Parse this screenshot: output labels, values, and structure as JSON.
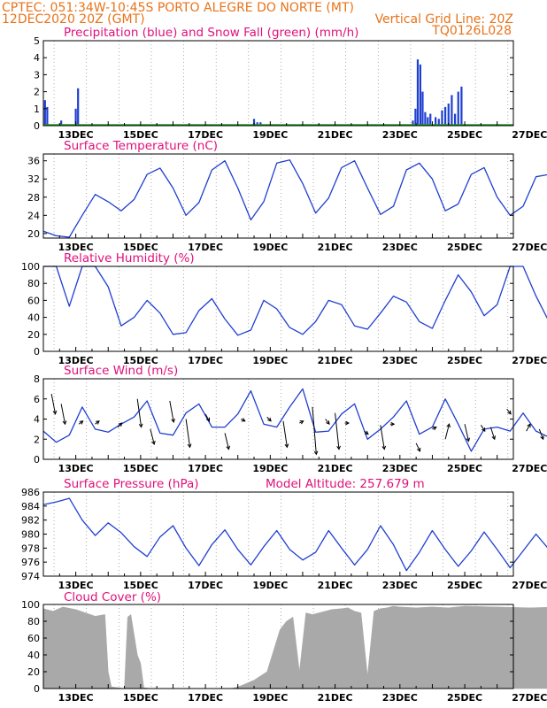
{
  "header": {
    "line1": "CPTEC:  051:34W-10:45S  PORTO ALEGRE DO NORTE (MT)",
    "line2_left": "12DEC2020 20Z (GMT)",
    "line2_right": "Vertical Grid Line: 20Z",
    "line3_right": "TQ0126L028"
  },
  "colors": {
    "header": "#e8731a",
    "panel_title": "#e0107a",
    "line": "#1f3fd0",
    "bar_blue": "#1f3fd0",
    "snow_green": "#1a9c1a",
    "cloud": "#a9a9a9"
  },
  "chart_data": [
    {
      "type": "bar",
      "title": "Precipitation (blue) and Snow Fall (green) (mm/h)",
      "ylim": [
        0,
        5
      ],
      "yticks": [
        0,
        1,
        2,
        3,
        4,
        5
      ],
      "xticklabels": [
        "13DEC",
        "15DEC",
        "17DEC",
        "19DEC",
        "21DEC",
        "23DEC",
        "25DEC",
        "27DEC"
      ],
      "series": [
        {
          "name": "Precipitation",
          "points": [
            [
              0.05,
              1.5
            ],
            [
              0.12,
              1.1
            ],
            [
              0.55,
              0.3
            ],
            [
              1.0,
              1.0
            ],
            [
              1.07,
              2.2
            ],
            [
              6.5,
              0.4
            ],
            [
              6.6,
              0.2
            ],
            [
              6.7,
              0.2
            ],
            [
              11.4,
              0.3
            ],
            [
              11.48,
              1.0
            ],
            [
              11.55,
              3.9
            ],
            [
              11.63,
              3.6
            ],
            [
              11.7,
              2.0
            ],
            [
              11.78,
              0.8
            ],
            [
              11.86,
              0.5
            ],
            [
              11.94,
              0.7
            ],
            [
              12.1,
              0.5
            ],
            [
              12.2,
              0.4
            ],
            [
              12.3,
              0.9
            ],
            [
              12.4,
              1.1
            ],
            [
              12.5,
              1.3
            ],
            [
              12.6,
              1.8
            ],
            [
              12.7,
              0.7
            ],
            [
              12.8,
              2.0
            ],
            [
              12.9,
              2.3
            ],
            [
              16.4,
              0.3
            ],
            [
              16.5,
              0.8
            ],
            [
              16.6,
              3.1
            ],
            [
              16.68,
              2.7
            ],
            [
              16.76,
              2.2
            ],
            [
              16.84,
              1.0
            ],
            [
              16.92,
              0.5
            ],
            [
              17.0,
              1.1
            ],
            [
              17.5,
              0.3
            ],
            [
              17.6,
              0.5
            ],
            [
              17.7,
              0.4
            ],
            [
              17.8,
              0.6
            ],
            [
              17.9,
              0.9
            ],
            [
              18.0,
              1.1
            ],
            [
              18.1,
              0.8
            ],
            [
              18.2,
              1.5
            ],
            [
              18.3,
              1.9
            ],
            [
              18.4,
              0.6
            ],
            [
              18.5,
              0.3
            ],
            [
              21.55,
              0.9
            ],
            [
              21.65,
              0.7
            ],
            [
              21.75,
              0.4
            ],
            [
              21.9,
              0.2
            ],
            [
              22.0,
              1.2
            ],
            [
              22.1,
              0.5
            ],
            [
              22.95,
              0.7
            ],
            [
              23.0,
              1.3
            ]
          ]
        },
        {
          "name": "Snow Fall",
          "points": []
        }
      ]
    },
    {
      "type": "line",
      "title": "Surface Temperature (nC)",
      "ylim": [
        19,
        37.5
      ],
      "yticks": [
        20,
        24,
        28,
        32,
        36
      ],
      "xticklabels": [
        "13DEC",
        "15DEC",
        "17DEC",
        "19DEC",
        "21DEC",
        "23DEC",
        "25DEC",
        "27DEC"
      ],
      "series": [
        {
          "name": "Temperature",
          "x": [
            0,
            0.4,
            0.8,
            1.2,
            1.6,
            2.0,
            2.4,
            2.8,
            3.2,
            3.6,
            4.0,
            4.4,
            4.8,
            5.2,
            5.6,
            6.0,
            6.4,
            6.8,
            7.2,
            7.6,
            8.0,
            8.4,
            8.8,
            9.2,
            9.6,
            10.0,
            10.4,
            10.8,
            11.2,
            11.6,
            12.0,
            12.4,
            12.8,
            13.2,
            13.6,
            14.0,
            14.4,
            14.8,
            15.2,
            15.6,
            16.0,
            16.4,
            16.8,
            17.2,
            17.6,
            18.0,
            18.4,
            18.8,
            19.2,
            19.6,
            20.0,
            20.4,
            20.8,
            21.2,
            21.6,
            22.0,
            22.4,
            22.8,
            23.0
          ],
          "values": [
            20.5,
            19.5,
            19.2,
            24.0,
            28.6,
            27.0,
            25.0,
            27.5,
            33.0,
            34.4,
            30.0,
            24.0,
            26.8,
            34.0,
            36.0,
            30.0,
            23.0,
            27.0,
            35.5,
            36.2,
            31.0,
            24.5,
            27.8,
            34.5,
            36.0,
            30.0,
            24.2,
            26.0,
            34.0,
            35.5,
            32.0,
            25.0,
            26.5,
            33.0,
            34.5,
            28.0,
            24.0,
            26.0,
            32.5,
            33.0,
            28.0,
            24.5,
            25.5,
            32.0,
            31.0,
            27.0,
            24.5,
            27.0,
            30.5,
            30.5,
            27.0,
            25.5,
            27.0,
            27.5,
            26.5,
            24.5,
            29.0,
            32.8,
            31.0
          ]
        }
      ]
    },
    {
      "type": "line",
      "title": "Relative Humidity (%)",
      "ylim": [
        0,
        100
      ],
      "yticks": [
        0,
        20,
        40,
        60,
        80,
        100
      ],
      "xticklabels": [
        "13DEC",
        "15DEC",
        "17DEC",
        "19DEC",
        "21DEC",
        "23DEC",
        "25DEC",
        "27DEC"
      ],
      "series": [
        {
          "name": "Relative Humidity",
          "x": [
            0,
            0.4,
            0.8,
            1.2,
            1.6,
            2.0,
            2.4,
            2.8,
            3.2,
            3.6,
            4.0,
            4.4,
            4.8,
            5.2,
            5.6,
            6.0,
            6.4,
            6.8,
            7.2,
            7.6,
            8.0,
            8.4,
            8.8,
            9.2,
            9.6,
            10.0,
            10.4,
            10.8,
            11.2,
            11.6,
            12.0,
            12.4,
            12.8,
            13.2,
            13.6,
            14.0,
            14.4,
            14.8,
            15.2,
            15.6,
            16.0,
            16.4,
            16.8,
            17.2,
            17.6,
            18.0,
            18.4,
            18.8,
            19.2,
            19.6,
            20.0,
            20.4,
            20.8,
            21.2,
            21.6,
            22.0,
            22.4,
            22.8,
            23.0
          ],
          "values": [
            100,
            100,
            53,
            100,
            100,
            76,
            30,
            40,
            60,
            45,
            20,
            22,
            48,
            62,
            38,
            19,
            25,
            60,
            50,
            28,
            20,
            35,
            60,
            55,
            30,
            26,
            45,
            65,
            58,
            35,
            27,
            60,
            90,
            70,
            42,
            55,
            100,
            100,
            65,
            35,
            50,
            100,
            95,
            55,
            68,
            90,
            82,
            60,
            47,
            90,
            100,
            70,
            100,
            100,
            72,
            40,
            65,
            85,
            78
          ]
        }
      ]
    },
    {
      "type": "line",
      "title": "Surface Wind (m/s)",
      "ylim": [
        0,
        8
      ],
      "yticks": [
        0,
        2,
        4,
        6,
        8
      ],
      "xticklabels": [
        "13DEC",
        "15DEC",
        "17DEC",
        "19DEC",
        "21DEC",
        "23DEC",
        "25DEC",
        "27DEC"
      ],
      "series": [
        {
          "name": "Wind speed",
          "x": [
            0,
            0.4,
            0.8,
            1.2,
            1.6,
            2.0,
            2.4,
            2.8,
            3.2,
            3.6,
            4.0,
            4.4,
            4.8,
            5.2,
            5.6,
            6.0,
            6.4,
            6.8,
            7.2,
            7.6,
            8.0,
            8.4,
            8.8,
            9.2,
            9.6,
            10.0,
            10.4,
            10.8,
            11.2,
            11.6,
            12.0,
            12.4,
            12.8,
            13.2,
            13.6,
            14.0,
            14.4,
            14.8,
            15.2,
            15.6,
            16.0,
            16.4,
            16.8,
            17.2,
            17.6,
            18.0,
            18.4,
            18.8,
            19.2,
            19.6,
            20.0,
            20.4,
            20.8,
            21.2,
            21.6,
            22.0,
            22.4,
            22.8,
            23.0
          ],
          "values": [
            2.8,
            1.7,
            2.4,
            5.2,
            3.0,
            2.7,
            3.5,
            4.2,
            5.8,
            2.6,
            2.4,
            4.6,
            5.5,
            3.2,
            3.2,
            4.5,
            6.8,
            3.5,
            3.2,
            5.2,
            7.0,
            2.7,
            2.8,
            4.5,
            5.5,
            2.0,
            3.0,
            4.2,
            5.8,
            2.5,
            3.2,
            6.0,
            3.5,
            0.8,
            3.0,
            3.2,
            2.8,
            4.6,
            2.8,
            2.2,
            3.0,
            3.6,
            5.2,
            2.6,
            2.2,
            5.0,
            6.8,
            3.0,
            1.5,
            4.0,
            5.0,
            1.8,
            1.8,
            3.2,
            4.8,
            2.2,
            2.0,
            6.2,
            2.6
          ]
        }
      ]
    },
    {
      "type": "line",
      "title": "Surface Pressure (hPa)",
      "annotation": "Model Altitude: 257.679 m",
      "ylim": [
        974,
        986
      ],
      "yticks": [
        974,
        976,
        978,
        980,
        982,
        984,
        986
      ],
      "xticklabels": [
        "13DEC",
        "15DEC",
        "17DEC",
        "19DEC",
        "21DEC",
        "23DEC",
        "25DEC",
        "27DEC"
      ],
      "series": [
        {
          "name": "Pressure",
          "x": [
            0,
            0.4,
            0.8,
            1.2,
            1.6,
            2.0,
            2.4,
            2.8,
            3.2,
            3.6,
            4.0,
            4.4,
            4.8,
            5.2,
            5.6,
            6.0,
            6.4,
            6.8,
            7.2,
            7.6,
            8.0,
            8.4,
            8.8,
            9.2,
            9.6,
            10.0,
            10.4,
            10.8,
            11.2,
            11.6,
            12.0,
            12.4,
            12.8,
            13.2,
            13.6,
            14.0,
            14.4,
            14.8,
            15.2,
            15.6,
            16.0,
            16.4,
            16.8,
            17.2,
            17.6,
            18.0,
            18.4,
            18.8,
            19.2,
            19.6,
            20.0,
            20.4,
            20.8,
            21.2,
            21.6,
            22.0,
            22.4,
            22.8,
            23.0
          ],
          "values": [
            984.2,
            984.6,
            985.1,
            982.0,
            979.8,
            981.6,
            980.2,
            978.2,
            976.8,
            979.6,
            981.2,
            978.0,
            975.5,
            978.5,
            980.6,
            977.8,
            975.6,
            978.2,
            980.5,
            977.8,
            976.3,
            977.4,
            980.5,
            978.0,
            975.6,
            977.8,
            981.2,
            978.5,
            974.8,
            977.4,
            980.5,
            977.8,
            975.4,
            977.6,
            980.3,
            977.8,
            975.2,
            977.6,
            980.0,
            977.8,
            975.0,
            977.6,
            980.5,
            978.0,
            975.6,
            977.8,
            979.8,
            977.5,
            975.8,
            977.2,
            979.8,
            977.2,
            974.6,
            977.0,
            980.8,
            978.2,
            975.5,
            976.5,
            979.8
          ]
        }
      ]
    },
    {
      "type": "area",
      "title": "Cloud Cover (%)",
      "ylim": [
        0,
        100
      ],
      "yticks": [
        0,
        20,
        40,
        60,
        80,
        100
      ],
      "xticklabels": [
        "13DEC",
        "15DEC",
        "17DEC",
        "19DEC",
        "21DEC",
        "23DEC",
        "25DEC",
        "27DEC"
      ],
      "series": [
        {
          "name": "Cloud Cover",
          "x": [
            0,
            0.3,
            0.6,
            1.0,
            1.3,
            1.6,
            1.9,
            2.0,
            2.1,
            2.5,
            2.6,
            2.7,
            2.9,
            3.0,
            3.1,
            3.3,
            3.6,
            4.0,
            4.5,
            5.0,
            5.5,
            5.8,
            6.0,
            6.2,
            6.5,
            6.7,
            6.9,
            7.1,
            7.3,
            7.5,
            7.7,
            7.9,
            8.1,
            8.3,
            8.6,
            8.9,
            9.2,
            9.4,
            9.6,
            9.8,
            10.0,
            10.2,
            10.4,
            10.6,
            10.8,
            11.0,
            11.5,
            12.0,
            12.5,
            13.0,
            14.0,
            15.0,
            16.0,
            17.0,
            18.0,
            19.0,
            20.0,
            21.0,
            22.0,
            23.0
          ],
          "values": [
            95,
            92,
            97,
            94,
            90,
            86,
            88,
            20,
            2,
            0,
            85,
            88,
            40,
            30,
            1,
            0,
            0,
            0,
            0,
            0,
            0,
            0,
            2,
            5,
            10,
            15,
            20,
            45,
            70,
            80,
            85,
            20,
            90,
            88,
            91,
            94,
            95,
            96,
            92,
            90,
            15,
            92,
            95,
            96,
            98,
            97,
            96,
            97,
            96,
            98,
            97,
            96,
            97,
            98,
            97,
            96,
            97,
            98,
            97,
            96
          ]
        }
      ]
    }
  ],
  "wind_arrows": [
    [
      0.25,
      6.5,
      4.5
    ],
    [
      0.55,
      5.5,
      3.5
    ],
    [
      1.1,
      3.5,
      3.8
    ],
    [
      1.6,
      3.5,
      3.8
    ],
    [
      2.3,
      3.2,
      3.6
    ],
    [
      2.9,
      6.0,
      3.2
    ],
    [
      3.3,
      3.0,
      1.5
    ],
    [
      3.9,
      5.8,
      3.7
    ],
    [
      4.4,
      4.0,
      1.2
    ],
    [
      5.0,
      4.5,
      3.8
    ],
    [
      5.6,
      2.6,
      1.0
    ],
    [
      6.1,
      4.0,
      3.8
    ],
    [
      6.9,
      4.2,
      3.8
    ],
    [
      7.4,
      3.8,
      1.2
    ],
    [
      7.9,
      3.6,
      3.8
    ],
    [
      8.3,
      5.2,
      0.5
    ],
    [
      8.7,
      4.0,
      3.5
    ],
    [
      9.0,
      4.6,
      1.0
    ],
    [
      9.3,
      3.6,
      3.6
    ],
    [
      9.9,
      2.8,
      2.5
    ],
    [
      10.4,
      3.4,
      1.0
    ],
    [
      10.7,
      3.5,
      3.5
    ],
    [
      11.5,
      1.6,
      0.8
    ],
    [
      12.0,
      3.0,
      3.2
    ],
    [
      12.4,
      2.0,
      3.5
    ],
    [
      13.0,
      3.5,
      1.8
    ],
    [
      13.5,
      3.4,
      2.8
    ],
    [
      13.8,
      3.2,
      2.0
    ],
    [
      14.3,
      5.0,
      4.5
    ],
    [
      14.9,
      2.8,
      3.5
    ],
    [
      15.3,
      3.0,
      2.0
    ],
    [
      15.7,
      3.2,
      3.5
    ],
    [
      16.3,
      4.8,
      2.0
    ],
    [
      17.1,
      3.2,
      2.5
    ],
    [
      17.8,
      2.2,
      2.0
    ],
    [
      18.1,
      2.6,
      2.5
    ],
    [
      19.2,
      2.0,
      2.5
    ],
    [
      19.5,
      1.8,
      2.8
    ],
    [
      20.2,
      3.0,
      4.2
    ],
    [
      20.6,
      3.2,
      3.8
    ],
    [
      21.3,
      2.6,
      3.0
    ],
    [
      21.8,
      2.2,
      2.5
    ],
    [
      22.3,
      2.0,
      3.5
    ],
    [
      22.7,
      3.0,
      2.2
    ]
  ]
}
